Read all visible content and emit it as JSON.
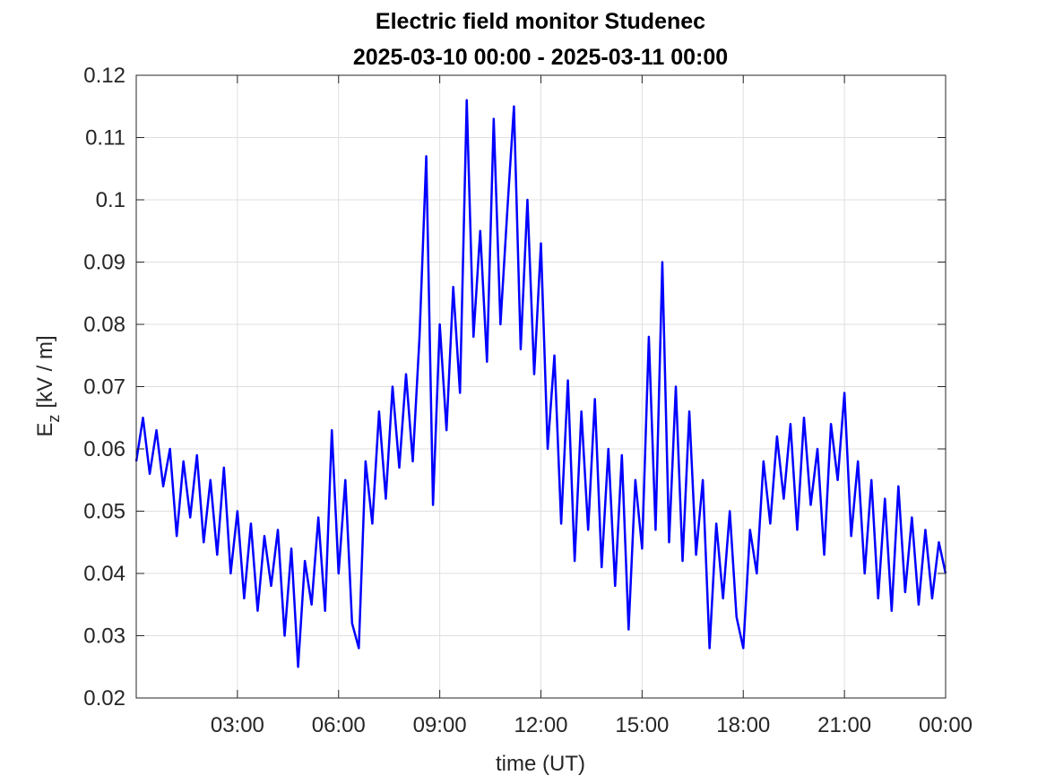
{
  "chart_data": {
    "type": "line",
    "title": [
      "Electric field monitor Studenec",
      "2025-03-10 00:00 - 2025-03-11 00:00"
    ],
    "x_label": "time (UT)",
    "y_label": {
      "main": "E",
      "sub": "z",
      "unit": "[kV / m]"
    },
    "xlim": [
      0,
      24
    ],
    "xticks": [
      {
        "value": 3,
        "label": "03:00"
      },
      {
        "value": 6,
        "label": "06:00"
      },
      {
        "value": 9,
        "label": "09:00"
      },
      {
        "value": 12,
        "label": "12:00"
      },
      {
        "value": 15,
        "label": "15:00"
      },
      {
        "value": 18,
        "label": "18:00"
      },
      {
        "value": 21,
        "label": "21:00"
      },
      {
        "value": 24,
        "label": "00:00"
      }
    ],
    "ylim": [
      0.02,
      0.12
    ],
    "yticks": [
      0.02,
      0.03,
      0.04,
      0.05,
      0.06,
      0.07,
      0.08,
      0.09,
      0.1,
      0.11,
      0.12
    ],
    "grid": true,
    "x": [
      0,
      0.2,
      0.4,
      0.6,
      0.8,
      1,
      1.2,
      1.4,
      1.6,
      1.8,
      2,
      2.2,
      2.4,
      2.6,
      2.8,
      3,
      3.2,
      3.4,
      3.6,
      3.8,
      4,
      4.2,
      4.4,
      4.6,
      4.8,
      5,
      5.2,
      5.4,
      5.6,
      5.8,
      6,
      6.2,
      6.4,
      6.6,
      6.8,
      7,
      7.2,
      7.4,
      7.6,
      7.8,
      8,
      8.2,
      8.4,
      8.6,
      8.8,
      9,
      9.2,
      9.4,
      9.6,
      9.8,
      10,
      10.2,
      10.4,
      10.6,
      10.8,
      11,
      11.2,
      11.4,
      11.6,
      11.8,
      12,
      12.2,
      12.4,
      12.6,
      12.8,
      13,
      13.2,
      13.4,
      13.6,
      13.8,
      14,
      14.2,
      14.4,
      14.6,
      14.8,
      15,
      15.2,
      15.4,
      15.6,
      15.8,
      16,
      16.2,
      16.4,
      16.6,
      16.8,
      17,
      17.2,
      17.4,
      17.6,
      17.8,
      18,
      18.2,
      18.4,
      18.6,
      18.8,
      19,
      19.2,
      19.4,
      19.6,
      19.8,
      20,
      20.2,
      20.4,
      20.6,
      20.8,
      21,
      21.2,
      21.4,
      21.6,
      21.8,
      22,
      22.2,
      22.4,
      22.6,
      22.8,
      23,
      23.2,
      23.4,
      23.6,
      23.8,
      24
    ],
    "series": [
      {
        "color": "#0000ff",
        "values": [
          0.058,
          0.065,
          0.056,
          0.063,
          0.054,
          0.06,
          0.046,
          0.058,
          0.049,
          0.059,
          0.045,
          0.055,
          0.043,
          0.057,
          0.04,
          0.05,
          0.036,
          0.048,
          0.034,
          0.046,
          0.038,
          0.047,
          0.03,
          0.044,
          0.025,
          0.042,
          0.035,
          0.049,
          0.034,
          0.063,
          0.04,
          0.055,
          0.032,
          0.028,
          0.058,
          0.048,
          0.066,
          0.052,
          0.07,
          0.057,
          0.072,
          0.058,
          0.078,
          0.107,
          0.051,
          0.08,
          0.063,
          0.086,
          0.069,
          0.116,
          0.078,
          0.095,
          0.074,
          0.113,
          0.08,
          0.098,
          0.115,
          0.076,
          0.1,
          0.072,
          0.093,
          0.06,
          0.075,
          0.048,
          0.071,
          0.042,
          0.066,
          0.047,
          0.068,
          0.041,
          0.06,
          0.038,
          0.059,
          0.031,
          0.055,
          0.044,
          0.078,
          0.047,
          0.09,
          0.045,
          0.07,
          0.042,
          0.066,
          0.043,
          0.055,
          0.028,
          0.048,
          0.036,
          0.05,
          0.033,
          0.028,
          0.047,
          0.04,
          0.058,
          0.048,
          0.062,
          0.052,
          0.064,
          0.047,
          0.065,
          0.051,
          0.06,
          0.043,
          0.064,
          0.055,
          0.069,
          0.046,
          0.058,
          0.04,
          0.055,
          0.036,
          0.052,
          0.034,
          0.054,
          0.037,
          0.049,
          0.035,
          0.047,
          0.036,
          0.045,
          0.04
        ]
      }
    ]
  }
}
